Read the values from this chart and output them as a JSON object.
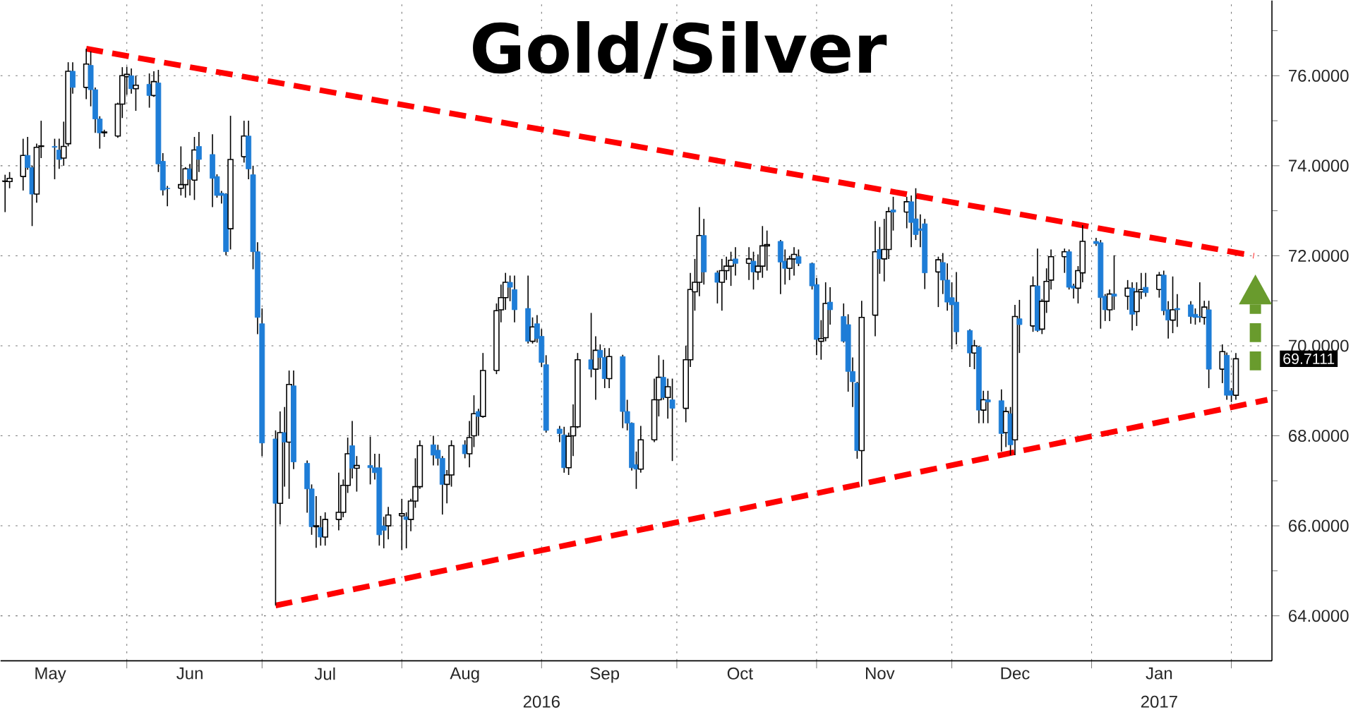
{
  "chart_data": {
    "type": "candlestick",
    "title": "Gold/Silver",
    "x": [
      "2016-05-05",
      "2016-05-06",
      "2016-05-09",
      "2016-05-10",
      "2016-05-11",
      "2016-05-12",
      "2016-05-13",
      "2016-05-16",
      "2016-05-17",
      "2016-05-18",
      "2016-05-19",
      "2016-05-20",
      "2016-05-23",
      "2016-05-24",
      "2016-05-25",
      "2016-05-26",
      "2016-05-27",
      "2016-05-30",
      "2016-05-31",
      "2016-06-01",
      "2016-06-02",
      "2016-06-03",
      "2016-06-06",
      "2016-06-07",
      "2016-06-08",
      "2016-06-09",
      "2016-06-10",
      "2016-06-13",
      "2016-06-14",
      "2016-06-15",
      "2016-06-16",
      "2016-06-17",
      "2016-06-20",
      "2016-06-21",
      "2016-06-22",
      "2016-06-23",
      "2016-06-24",
      "2016-06-27",
      "2016-06-28",
      "2016-06-29",
      "2016-06-30",
      "2016-07-01",
      "2016-07-04",
      "2016-07-05",
      "2016-07-06",
      "2016-07-07",
      "2016-07-08",
      "2016-07-11",
      "2016-07-12",
      "2016-07-13",
      "2016-07-14",
      "2016-07-15",
      "2016-07-18",
      "2016-07-19",
      "2016-07-20",
      "2016-07-21",
      "2016-07-22",
      "2016-07-25",
      "2016-07-26",
      "2016-07-27",
      "2016-07-28",
      "2016-07-29",
      "2016-08-01",
      "2016-08-02",
      "2016-08-03",
      "2016-08-04",
      "2016-08-05",
      "2016-08-08",
      "2016-08-09",
      "2016-08-10",
      "2016-08-11",
      "2016-08-12",
      "2016-08-15",
      "2016-08-16",
      "2016-08-17",
      "2016-08-18",
      "2016-08-19",
      "2016-08-22",
      "2016-08-23",
      "2016-08-24",
      "2016-08-25",
      "2016-08-26",
      "2016-08-29",
      "2016-08-30",
      "2016-08-31",
      "2016-09-01",
      "2016-09-02",
      "2016-09-05",
      "2016-09-06",
      "2016-09-07",
      "2016-09-08",
      "2016-09-09",
      "2016-09-12",
      "2016-09-13",
      "2016-09-14",
      "2016-09-15",
      "2016-09-16",
      "2016-09-19",
      "2016-09-20",
      "2016-09-21",
      "2016-09-22",
      "2016-09-23",
      "2016-09-26",
      "2016-09-27",
      "2016-09-28",
      "2016-09-29",
      "2016-09-30",
      "2016-10-03",
      "2016-10-04",
      "2016-10-05",
      "2016-10-06",
      "2016-10-07",
      "2016-10-10",
      "2016-10-11",
      "2016-10-12",
      "2016-10-13",
      "2016-10-14",
      "2016-10-17",
      "2016-10-18",
      "2016-10-19",
      "2016-10-20",
      "2016-10-21",
      "2016-10-24",
      "2016-10-25",
      "2016-10-26",
      "2016-10-27",
      "2016-10-28",
      "2016-10-31",
      "2016-11-01",
      "2016-11-02",
      "2016-11-03",
      "2016-11-04",
      "2016-11-07",
      "2016-11-08",
      "2016-11-09",
      "2016-11-10",
      "2016-11-11",
      "2016-11-14",
      "2016-11-15",
      "2016-11-16",
      "2016-11-17",
      "2016-11-18",
      "2016-11-21",
      "2016-11-22",
      "2016-11-23",
      "2016-11-24",
      "2016-11-25",
      "2016-11-28",
      "2016-11-29",
      "2016-11-30",
      "2016-12-01",
      "2016-12-02",
      "2016-12-05",
      "2016-12-06",
      "2016-12-07",
      "2016-12-08",
      "2016-12-09",
      "2016-12-12",
      "2016-12-13",
      "2016-12-14",
      "2016-12-15",
      "2016-12-16",
      "2016-12-19",
      "2016-12-20",
      "2016-12-21",
      "2016-12-22",
      "2016-12-23",
      "2016-12-26",
      "2016-12-27",
      "2016-12-28",
      "2016-12-29",
      "2016-12-30",
      "2017-01-02",
      "2017-01-03",
      "2017-01-04",
      "2017-01-05",
      "2017-01-06",
      "2017-01-09",
      "2017-01-10",
      "2017-01-11",
      "2017-01-12",
      "2017-01-13",
      "2017-01-16",
      "2017-01-17",
      "2017-01-18",
      "2017-01-19",
      "2017-01-20",
      "2017-01-23",
      "2017-01-24",
      "2017-01-25",
      "2017-01-26",
      "2017-01-27",
      "2017-01-30",
      "2017-01-31",
      "2017-02-01",
      "2017-02-02"
    ],
    "ohlc": [
      [
        73.65,
        73.8,
        72.97,
        73.66
      ],
      [
        73.65,
        73.86,
        73.5,
        73.72
      ],
      [
        73.76,
        74.6,
        73.45,
        74.23
      ],
      [
        74.23,
        74.64,
        73.91,
        73.96
      ],
      [
        73.96,
        74.0,
        72.66,
        73.37
      ],
      [
        73.37,
        74.49,
        73.18,
        74.41
      ],
      [
        74.43,
        75.0,
        74.17,
        74.44
      ],
      [
        74.43,
        74.6,
        73.7,
        74.41
      ],
      [
        74.35,
        74.6,
        73.93,
        74.14
      ],
      [
        74.17,
        74.98,
        74.0,
        74.43
      ],
      [
        74.49,
        76.3,
        74.43,
        76.1
      ],
      [
        76.1,
        76.3,
        75.6,
        75.74
      ],
      [
        75.74,
        76.6,
        75.48,
        76.26
      ],
      [
        76.23,
        76.54,
        75.32,
        75.69
      ],
      [
        75.69,
        75.74,
        74.73,
        75.04
      ],
      [
        75.04,
        75.1,
        74.38,
        74.73
      ],
      [
        74.73,
        74.8,
        74.64,
        74.75
      ],
      [
        74.66,
        75.4,
        74.62,
        75.37
      ],
      [
        75.37,
        76.19,
        75.06,
        76.0
      ],
      [
        75.98,
        76.2,
        75.58,
        76.03
      ],
      [
        76.0,
        76.16,
        75.6,
        75.71
      ],
      [
        75.71,
        76.0,
        75.22,
        75.79
      ],
      [
        75.81,
        76.05,
        75.29,
        75.56
      ],
      [
        75.56,
        76.1,
        75.53,
        75.87
      ],
      [
        75.84,
        76.13,
        73.86,
        74.04
      ],
      [
        74.1,
        74.28,
        73.34,
        73.46
      ],
      [
        73.5,
        73.55,
        73.1,
        73.49
      ],
      [
        73.5,
        74.43,
        73.34,
        73.58
      ],
      [
        73.58,
        73.97,
        73.29,
        73.93
      ],
      [
        73.93,
        74.04,
        73.34,
        73.7
      ],
      [
        73.68,
        74.64,
        73.24,
        74.35
      ],
      [
        74.43,
        74.75,
        73.86,
        74.14
      ],
      [
        74.25,
        74.7,
        73.08,
        73.72
      ],
      [
        73.76,
        73.81,
        73.29,
        73.34
      ],
      [
        73.39,
        73.44,
        73.16,
        73.34
      ],
      [
        73.37,
        73.39,
        72.01,
        72.09
      ],
      [
        72.6,
        75.11,
        72.14,
        74.14
      ],
      [
        74.2,
        75.0,
        74.07,
        74.66
      ],
      [
        74.66,
        75.0,
        73.7,
        73.93
      ],
      [
        73.8,
        74.0,
        71.7,
        72.09
      ],
      [
        72.09,
        72.3,
        70.26,
        70.63
      ],
      [
        70.49,
        70.83,
        67.55,
        67.84
      ],
      [
        67.93,
        68.12,
        64.23,
        66.5
      ],
      [
        66.5,
        68.54,
        66.03,
        68.07
      ],
      [
        68.07,
        68.64,
        66.87,
        67.86
      ],
      [
        67.86,
        69.45,
        66.6,
        69.14
      ],
      [
        69.11,
        69.45,
        67.26,
        67.42
      ],
      [
        67.39,
        67.45,
        66.29,
        66.82
      ],
      [
        66.82,
        66.92,
        65.8,
        65.98
      ],
      [
        65.98,
        66.66,
        65.51,
        66.0
      ],
      [
        65.96,
        66.22,
        65.56,
        65.75
      ],
      [
        65.75,
        66.3,
        65.56,
        66.14
      ],
      [
        66.14,
        67.18,
        65.9,
        66.3
      ],
      [
        66.3,
        67.03,
        66.19,
        66.9
      ],
      [
        66.9,
        67.96,
        66.73,
        67.6
      ],
      [
        67.78,
        68.33,
        67.05,
        67.28
      ],
      [
        67.28,
        67.55,
        66.76,
        67.34
      ],
      [
        67.34,
        67.98,
        66.92,
        67.29
      ],
      [
        67.29,
        67.6,
        67.03,
        67.18
      ],
      [
        67.29,
        67.6,
        65.56,
        65.8
      ],
      [
        66.0,
        66.2,
        65.5,
        65.9
      ],
      [
        66.0,
        66.42,
        65.7,
        66.24
      ],
      [
        66.22,
        66.6,
        65.46,
        66.27
      ],
      [
        66.2,
        66.3,
        65.5,
        66.14
      ],
      [
        66.14,
        66.6,
        65.88,
        66.55
      ],
      [
        66.55,
        67.5,
        66.4,
        66.87
      ],
      [
        66.87,
        67.9,
        66.82,
        67.78
      ],
      [
        67.8,
        68.0,
        67.34,
        67.57
      ],
      [
        67.68,
        67.8,
        67.34,
        67.5
      ],
      [
        67.5,
        67.55,
        66.25,
        66.92
      ],
      [
        66.92,
        67.24,
        66.5,
        67.13
      ],
      [
        67.13,
        67.9,
        66.87,
        67.78
      ],
      [
        67.8,
        67.9,
        67.5,
        67.6
      ],
      [
        67.6,
        68.33,
        67.3,
        67.96
      ],
      [
        68.0,
        68.9,
        67.75,
        68.49
      ],
      [
        68.54,
        68.6,
        68.0,
        68.43
      ],
      [
        68.43,
        69.84,
        68.4,
        69.45
      ],
      [
        69.45,
        70.94,
        69.37,
        70.78
      ],
      [
        70.8,
        71.36,
        70.52,
        71.07
      ],
      [
        71.07,
        71.62,
        70.8,
        71.41
      ],
      [
        71.41,
        71.56,
        70.99,
        71.3
      ],
      [
        71.25,
        71.56,
        70.52,
        70.8
      ],
      [
        70.83,
        71.56,
        70.05,
        70.1
      ],
      [
        70.1,
        70.63,
        70.05,
        70.42
      ],
      [
        70.49,
        70.68,
        70.07,
        70.16
      ],
      [
        70.21,
        70.37,
        69.53,
        69.63
      ],
      [
        69.58,
        69.79,
        68.07,
        68.12
      ],
      [
        68.15,
        68.22,
        67.86,
        68.05
      ],
      [
        68.02,
        68.2,
        67.18,
        67.29
      ],
      [
        67.29,
        68.07,
        67.13,
        67.99
      ],
      [
        68.0,
        68.7,
        67.55,
        68.2
      ],
      [
        68.2,
        69.84,
        68.17,
        69.69
      ],
      [
        69.69,
        70.73,
        69.3,
        69.48
      ],
      [
        69.48,
        70.21,
        68.8,
        69.9
      ],
      [
        69.9,
        70.03,
        69.48,
        69.74
      ],
      [
        69.74,
        69.95,
        69.06,
        69.27
      ],
      [
        69.27,
        69.95,
        69.06,
        69.76
      ],
      [
        69.76,
        69.8,
        68.17,
        68.54
      ],
      [
        68.54,
        68.8,
        68.12,
        68.28
      ],
      [
        68.28,
        68.3,
        67.23,
        67.29
      ],
      [
        67.36,
        67.65,
        66.82,
        67.26
      ],
      [
        67.26,
        68.22,
        67.18,
        67.91
      ],
      [
        67.91,
        69.27,
        67.86,
        68.8
      ],
      [
        68.8,
        69.79,
        68.43,
        69.3
      ],
      [
        69.3,
        69.69,
        68.8,
        68.85
      ],
      [
        68.85,
        69.27,
        68.38,
        69.09
      ],
      [
        68.8,
        69.27,
        67.44,
        68.61
      ],
      [
        68.61,
        70.0,
        68.3,
        69.69
      ],
      [
        69.69,
        71.62,
        69.53,
        71.25
      ],
      [
        71.2,
        71.93,
        70.78,
        71.41
      ],
      [
        71.41,
        73.08,
        71.1,
        72.45
      ],
      [
        72.45,
        72.82,
        71.36,
        71.64
      ],
      [
        71.62,
        71.67,
        70.94,
        71.41
      ],
      [
        71.41,
        71.93,
        70.78,
        71.67
      ],
      [
        71.67,
        71.98,
        71.46,
        71.77
      ],
      [
        71.77,
        72.09,
        71.33,
        71.9
      ],
      [
        71.93,
        72.19,
        71.56,
        71.83
      ],
      [
        71.83,
        72.19,
        71.46,
        71.93
      ],
      [
        71.88,
        72.09,
        71.25,
        71.64
      ],
      [
        71.64,
        72.03,
        71.46,
        71.77
      ],
      [
        71.77,
        72.66,
        71.51,
        72.22
      ],
      [
        72.22,
        72.56,
        71.67,
        72.25
      ],
      [
        72.32,
        72.35,
        71.15,
        71.86
      ],
      [
        71.88,
        72.14,
        71.36,
        71.72
      ],
      [
        71.72,
        72.0,
        71.46,
        71.93
      ],
      [
        71.93,
        72.19,
        71.56,
        72.03
      ],
      [
        71.98,
        72.14,
        71.77,
        71.83
      ],
      [
        71.83,
        71.85,
        71.25,
        71.33
      ],
      [
        71.36,
        71.51,
        69.79,
        70.14
      ],
      [
        70.1,
        70.57,
        69.69,
        70.16
      ],
      [
        70.18,
        71.41,
        70.1,
        70.94
      ],
      [
        70.97,
        71.3,
        70.47,
        70.8
      ],
      [
        70.65,
        70.94,
        70.07,
        70.1
      ],
      [
        70.47,
        70.7,
        68.98,
        69.43
      ],
      [
        69.43,
        69.74,
        68.64,
        69.2
      ],
      [
        69.17,
        69.2,
        67.49,
        67.67
      ],
      [
        67.67,
        71.0,
        66.87,
        70.63
      ],
      [
        70.68,
        72.77,
        70.21,
        72.09
      ],
      [
        72.14,
        72.64,
        71.6,
        71.93
      ],
      [
        71.93,
        72.82,
        71.43,
        72.14
      ],
      [
        72.14,
        73.08,
        71.93,
        72.98
      ],
      [
        73.02,
        73.31,
        72.56,
        72.97
      ],
      [
        72.97,
        73.31,
        72.61,
        73.2
      ],
      [
        73.2,
        73.34,
        72.19,
        72.74
      ],
      [
        72.82,
        73.5,
        72.35,
        72.47
      ],
      [
        72.6,
        72.92,
        72.19,
        72.56
      ],
      [
        72.71,
        72.82,
        71.26,
        71.62
      ],
      [
        71.64,
        71.98,
        70.86,
        71.91
      ],
      [
        71.85,
        72.06,
        71.15,
        71.46
      ],
      [
        71.46,
        71.83,
        70.78,
        70.97
      ],
      [
        71.07,
        71.41,
        69.92,
        70.91
      ],
      [
        70.97,
        71.64,
        70.03,
        70.31
      ],
      [
        70.34,
        70.37,
        69.53,
        69.84
      ],
      [
        69.84,
        70.13,
        69.48,
        70.0
      ],
      [
        69.97,
        70.0,
        68.28,
        68.57
      ],
      [
        68.57,
        69.0,
        68.28,
        68.8
      ],
      [
        68.8,
        69.0,
        68.28,
        68.75
      ],
      [
        68.78,
        69.03,
        67.65,
        68.05
      ],
      [
        68.07,
        68.64,
        67.75,
        68.54
      ],
      [
        68.49,
        68.64,
        67.57,
        67.8
      ],
      [
        67.91,
        70.91,
        67.57,
        70.65
      ],
      [
        70.6,
        71.02,
        69.84,
        70.47
      ],
      [
        70.44,
        71.54,
        70.31,
        71.33
      ],
      [
        71.33,
        72.16,
        70.31,
        70.34
      ],
      [
        70.37,
        71.04,
        70.26,
        70.99
      ],
      [
        70.99,
        71.72,
        70.73,
        71.43
      ],
      [
        71.46,
        72.14,
        71.25,
        71.98
      ],
      [
        71.98,
        72.16,
        71.62,
        72.09
      ],
      [
        72.09,
        72.14,
        71.25,
        71.3
      ],
      [
        71.33,
        71.38,
        71.05,
        71.28
      ],
      [
        71.28,
        71.77,
        70.94,
        71.67
      ],
      [
        71.62,
        72.68,
        71.41,
        72.32
      ],
      [
        72.32,
        72.4,
        72.22,
        72.27
      ],
      [
        72.29,
        72.35,
        70.38,
        71.07
      ],
      [
        71.1,
        71.15,
        70.55,
        70.8
      ],
      [
        70.8,
        71.25,
        70.55,
        71.15
      ],
      [
        71.15,
        72.01,
        70.8,
        71.1
      ],
      [
        71.1,
        71.46,
        70.8,
        71.28
      ],
      [
        71.28,
        71.41,
        70.34,
        70.7
      ],
      [
        70.76,
        71.41,
        70.44,
        71.2
      ],
      [
        71.2,
        71.62,
        71.04,
        71.25
      ],
      [
        71.3,
        71.62,
        71.09,
        71.18
      ],
      [
        71.25,
        71.64,
        71.07,
        71.57
      ],
      [
        71.57,
        71.67,
        70.68,
        70.78
      ],
      [
        70.8,
        70.99,
        70.16,
        70.57
      ],
      [
        70.57,
        71.54,
        70.28,
        70.8
      ],
      [
        70.83,
        71.15,
        70.42,
        70.8
      ],
      [
        70.91,
        70.99,
        70.49,
        70.65
      ],
      [
        70.7,
        70.83,
        70.47,
        70.63
      ],
      [
        70.65,
        71.41,
        70.52,
        70.63
      ],
      [
        70.63,
        71.0,
        70.47,
        70.86
      ],
      [
        70.8,
        71.0,
        69.06,
        69.48
      ],
      [
        69.48,
        70.03,
        69.17,
        69.87
      ],
      [
        69.79,
        69.85,
        68.8,
        68.9
      ],
      [
        69.0,
        69.06,
        68.75,
        68.9
      ],
      [
        68.9,
        69.84,
        68.8,
        69.7111
      ]
    ],
    "series": [
      {
        "type": "line",
        "x": [
          "2016-05-23",
          "2017-02-06"
        ],
        "values": [
          76.6,
          72.0
        ],
        "color": "#ff0000",
        "line_style": "dashed"
      },
      {
        "type": "line",
        "x": [
          "2016-07-04",
          "2017-02-09"
        ],
        "values": [
          64.23,
          68.8
        ],
        "color": "#ff0000",
        "line_style": "dashed"
      }
    ],
    "xlim": [
      "2016-05-04",
      "2017-02-10"
    ],
    "xticks": [
      {
        "value": "2016-05-15",
        "label": "May"
      },
      {
        "value": "2016-06-01",
        "label": null
      },
      {
        "value": "2016-06-15",
        "label": "Jun"
      },
      {
        "value": "2016-07-01",
        "label": null
      },
      {
        "value": "2016-07-15",
        "label": "Jul"
      },
      {
        "value": "2016-08-01",
        "label": null
      },
      {
        "value": "2016-08-15",
        "label": "Aug"
      },
      {
        "value": "2016-09-01",
        "label": null
      },
      {
        "value": "2016-09-15",
        "label": "Sep"
      },
      {
        "value": "2016-10-01",
        "label": null
      },
      {
        "value": "2016-10-15",
        "label": "Oct"
      },
      {
        "value": "2016-11-01",
        "label": null
      },
      {
        "value": "2016-11-15",
        "label": "Nov"
      },
      {
        "value": "2016-12-01",
        "label": null
      },
      {
        "value": "2016-12-15",
        "label": "Dec"
      },
      {
        "value": "2017-01-01",
        "label": null
      },
      {
        "value": "2017-01-16",
        "label": "Jan"
      },
      {
        "value": "2017-02-01",
        "label": null
      }
    ],
    "x2lim": [
      "2016-05-04",
      "2017-02-10"
    ],
    "x2ticks": [
      {
        "value": "2016-09-01",
        "label": "2016"
      },
      {
        "value": "2017-01-16",
        "label": "2017"
      }
    ],
    "ylim": [
      63.0,
      77.67
    ],
    "yticks": [
      {
        "value": 64,
        "label": "64.0000"
      },
      {
        "value": 65,
        "label": null
      },
      {
        "value": 66,
        "label": "66.0000"
      },
      {
        "value": 67,
        "label": null
      },
      {
        "value": 68,
        "label": "68.0000"
      },
      {
        "value": 69,
        "label": null
      },
      {
        "value": 70,
        "label": "70.0000"
      },
      {
        "value": 71,
        "label": null
      },
      {
        "value": 72,
        "label": "72.0000"
      },
      {
        "value": 73,
        "label": null
      },
      {
        "value": 74,
        "label": "74.0000"
      },
      {
        "value": 75,
        "label": null
      },
      {
        "value": 76,
        "label": "76.0000"
      },
      {
        "value": 77,
        "label": null
      }
    ],
    "grid": true,
    "annotations": [
      "69.7111"
    ]
  }
}
